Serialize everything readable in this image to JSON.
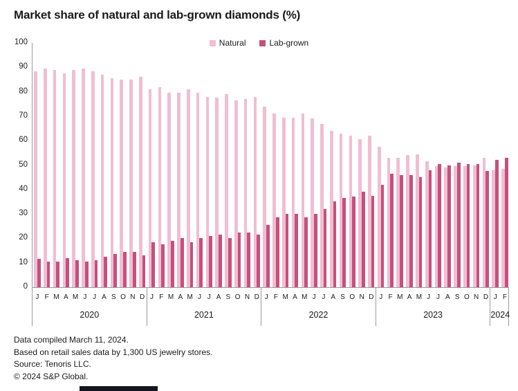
{
  "chart": {
    "title": "Market share of natural and lab-grown diamonds (%)"
  },
  "chart_data": {
    "type": "bar",
    "title": "Market share of natural and lab-grown diamonds (%)",
    "ylim": [
      0,
      100
    ],
    "y_ticks": [
      0,
      10,
      20,
      30,
      40,
      50,
      60,
      70,
      80,
      90,
      100
    ],
    "grid": false,
    "legend_position": "top-center",
    "x_month_labels": [
      "J",
      "F",
      "M",
      "A",
      "M",
      "J",
      "J",
      "A",
      "S",
      "O",
      "N",
      "D",
      "J",
      "F",
      "M",
      "A",
      "M",
      "J",
      "J",
      "A",
      "S",
      "O",
      "N",
      "D",
      "J",
      "F",
      "M",
      "A",
      "M",
      "J",
      "J",
      "A",
      "S",
      "O",
      "N",
      "D",
      "J",
      "F",
      "M",
      "A",
      "M",
      "J",
      "J",
      "A",
      "S",
      "O",
      "N",
      "D",
      "J",
      "F"
    ],
    "years": [
      {
        "label": "2020",
        "months": 12
      },
      {
        "label": "2021",
        "months": 12
      },
      {
        "label": "2022",
        "months": 12
      },
      {
        "label": "2023",
        "months": 12
      },
      {
        "label": "2024",
        "months": 2
      }
    ],
    "series": [
      {
        "name": "Natural",
        "color": "#f1bed2",
        "values": [
          88.5,
          89.5,
          89,
          87.5,
          89,
          89.5,
          88.5,
          87,
          85.5,
          85,
          85,
          86,
          81,
          82,
          79.5,
          79.5,
          81,
          79.5,
          78,
          77.5,
          79,
          76.5,
          77,
          78,
          74,
          71,
          69.5,
          69.5,
          71,
          69,
          67,
          64,
          63,
          62,
          60.5,
          62,
          57.5,
          53,
          53,
          54,
          54.5,
          51.5,
          49.5,
          49,
          49.5,
          49.5,
          50,
          53,
          48,
          48.5
        ]
      },
      {
        "name": "Lab-grown",
        "color": "#c5517a",
        "values": [
          11.5,
          10.5,
          10.5,
          12,
          11,
          10.5,
          11,
          12.5,
          13.5,
          14.5,
          14.5,
          13,
          18.5,
          17.5,
          19,
          20,
          18.5,
          20,
          21,
          21.5,
          20,
          22.5,
          22.5,
          21.5,
          25.5,
          28.5,
          30,
          30,
          28.5,
          30,
          32,
          35,
          36.5,
          37,
          39,
          37.5,
          42,
          46.5,
          46,
          46,
          45,
          48,
          50.5,
          50,
          51,
          50.5,
          50.5,
          47.5,
          52,
          53
        ]
      }
    ]
  },
  "footer": {
    "lines": [
      "Data compiled March 11, 2024.",
      "Based on retail sales data by 1,300 US jewelry stores.",
      "Source: Tenoris LLC.",
      "© 2024 S&P Global."
    ]
  }
}
